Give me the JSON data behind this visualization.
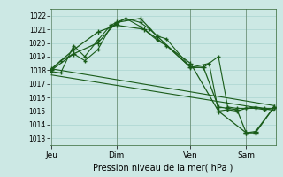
{
  "background_color": "#cce8e4",
  "grid_color": "#aad4d0",
  "line_color": "#1a5c1a",
  "xlabel": "Pression niveau de la mer( hPa )",
  "ylim": [
    1012.5,
    1022.5
  ],
  "yticks": [
    1013,
    1014,
    1015,
    1016,
    1017,
    1018,
    1019,
    1020,
    1021,
    1022
  ],
  "xtick_labels": [
    "Jeu",
    "Dim",
    "Ven",
    "Sam"
  ],
  "xtick_positions": [
    0,
    3.5,
    7.5,
    10.5
  ],
  "xlim": [
    -0.1,
    12.1
  ],
  "s1_x": [
    0,
    0.5,
    1.2,
    1.8,
    2.5,
    3.2,
    3.5,
    4.0,
    4.8,
    5.3,
    5.7,
    6.2,
    7.5,
    8.2,
    8.5,
    9.0,
    9.5,
    10.0,
    10.5,
    11.0,
    11.5,
    12.0
  ],
  "s1_y": [
    1018.0,
    1018.7,
    1019.2,
    1018.7,
    1019.5,
    1021.2,
    1021.4,
    1021.8,
    1021.5,
    1021.0,
    1020.5,
    1020.3,
    1018.2,
    1018.2,
    1018.5,
    1019.0,
    1015.3,
    1015.2,
    1015.2,
    1015.3,
    1015.2,
    1015.2
  ],
  "s2_x": [
    0,
    0.5,
    1.2,
    1.8,
    2.5,
    3.2,
    3.5,
    4.0,
    4.8,
    5.7,
    6.2,
    7.5,
    8.5,
    9.0,
    9.5,
    10.0,
    10.5,
    11.0,
    11.5,
    12.0
  ],
  "s2_y": [
    1017.9,
    1017.8,
    1019.8,
    1019.0,
    1020.2,
    1021.3,
    1021.5,
    1021.8,
    1021.2,
    1020.2,
    1019.8,
    1018.2,
    1018.5,
    1015.0,
    1015.1,
    1015.0,
    1015.2,
    1015.2,
    1015.1,
    1015.2
  ],
  "s3_x": [
    0,
    1.2,
    2.5,
    3.5,
    4.8,
    5.7,
    7.5,
    8.2,
    9.0,
    9.5,
    10.0,
    10.5,
    11.0,
    12.0
  ],
  "s3_y": [
    1018.0,
    1019.2,
    1020.0,
    1021.5,
    1021.8,
    1020.5,
    1018.2,
    1018.2,
    1015.3,
    1015.2,
    1015.1,
    1013.4,
    1013.5,
    1015.3
  ],
  "s4_x": [
    0,
    1.2,
    2.5,
    3.5,
    5.0,
    7.5,
    9.0,
    10.5,
    11.0,
    12.0
  ],
  "s4_y": [
    1018.1,
    1019.5,
    1020.8,
    1021.3,
    1021.0,
    1018.5,
    1015.0,
    1013.4,
    1013.4,
    1015.3
  ],
  "trend1_x": [
    0,
    12
  ],
  "trend1_y": [
    1018.1,
    1015.4
  ],
  "trend2_x": [
    0,
    12
  ],
  "trend2_y": [
    1017.65,
    1015.05
  ]
}
